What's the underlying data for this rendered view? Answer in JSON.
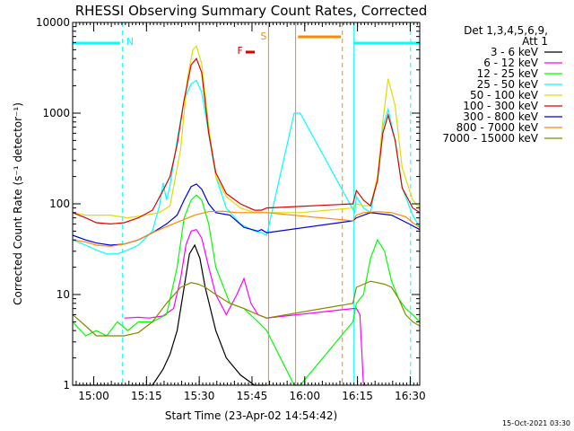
{
  "chart_data": {
    "type": "line",
    "title": "RHESSI Observing Summary Count Rates, Corrected",
    "xlabel": "Start Time (23-Apr-02 14:54:42)",
    "ylabel": "Corrected Count Rate (s⁻¹ detector⁻¹)",
    "y_scale": "log",
    "ylim": [
      1,
      10000
    ],
    "xlim_minutes": [
      -0.7,
      98
    ],
    "x_ticks": [
      {
        "label": "15:00",
        "t": 5.3
      },
      {
        "label": "15:15",
        "t": 20.3
      },
      {
        "label": "15:30",
        "t": 35.3
      },
      {
        "label": "15:45",
        "t": 50.3
      },
      {
        "label": "16:00",
        "t": 65.3
      },
      {
        "label": "16:15",
        "t": 80.3
      },
      {
        "label": "16:30",
        "t": 95.3
      }
    ],
    "y_ticks": [
      {
        "label": "1",
        "v": 1
      },
      {
        "label": "10",
        "v": 10
      },
      {
        "label": "100",
        "v": 100
      },
      {
        "label": "1000",
        "v": 1000
      },
      {
        "label": "10000",
        "v": 10000
      }
    ],
    "legend_header": [
      "Det 1,3,4,5,6,9,",
      "Att 1"
    ],
    "legend_position": "top-right",
    "series": [
      {
        "name": "3 - 6 keV",
        "color": "#000000",
        "x": [
          -0.7,
          3,
          10,
          18,
          22,
          25,
          27,
          29,
          31,
          32.5,
          34,
          35.5,
          37,
          40,
          43,
          47,
          51,
          54.5
        ],
        "y": [
          1,
          1,
          1,
          1,
          1,
          1.5,
          2.2,
          4,
          12,
          28,
          35,
          25,
          12,
          4,
          2,
          1.3,
          1,
          1
        ]
      },
      {
        "name": "6 - 12 keV",
        "color": "#ff00ff",
        "x": [
          14,
          18,
          21,
          25,
          28,
          30,
          31.5,
          33,
          34.5,
          36,
          38,
          40,
          43,
          46,
          48,
          50,
          52,
          54.5,
          79,
          80,
          81,
          82,
          83
        ],
        "y": [
          5.5,
          5.6,
          5.5,
          5.8,
          7,
          15,
          35,
          50,
          52,
          42,
          20,
          10,
          6,
          10,
          15,
          8,
          6,
          5.5,
          7,
          7,
          6,
          1,
          1
        ]
      },
      {
        "name": "12 - 25 keV",
        "color": "#00ff00",
        "x": [
          -0.7,
          3,
          6,
          9,
          12,
          15,
          18,
          22,
          26,
          29,
          31,
          33,
          34.5,
          36,
          38,
          40,
          44,
          48,
          52,
          54.5,
          62.3,
          63,
          64,
          79,
          80,
          82,
          84,
          86,
          88,
          90,
          92,
          94,
          96,
          98
        ],
        "y": [
          5,
          3.5,
          4,
          3.5,
          5,
          4,
          5,
          5,
          6,
          20,
          70,
          110,
          125,
          110,
          60,
          20,
          8,
          7,
          5,
          4,
          1,
          1,
          1,
          5,
          8,
          10,
          25,
          40,
          30,
          14,
          9,
          7,
          6,
          5
        ]
      },
      {
        "name": "25 - 50 keV",
        "color": "#00ffff",
        "x": [
          -0.7,
          3,
          6,
          9,
          12,
          15,
          18,
          22,
          24,
          25,
          26,
          27,
          29,
          31,
          33,
          34.5,
          36,
          38,
          40,
          43,
          47,
          51,
          53,
          54.5,
          62.3,
          64,
          79.5,
          80,
          82,
          84,
          86,
          87.5,
          89,
          91,
          93,
          96,
          98
        ],
        "y": [
          40,
          35,
          31,
          28,
          28,
          31,
          35,
          50,
          95,
          170,
          110,
          160,
          500,
          1400,
          2100,
          2300,
          1700,
          600,
          200,
          90,
          60,
          50,
          48,
          45,
          1000,
          1000,
          80,
          120,
          90,
          80,
          200,
          700,
          1100,
          500,
          150,
          75,
          55
        ]
      },
      {
        "name": "50 - 100 keV",
        "color": "#dddd00",
        "x": [
          -0.7,
          3,
          6,
          10,
          15,
          20,
          24,
          27,
          30,
          32,
          33.5,
          34.5,
          36,
          38,
          40,
          43,
          47,
          51,
          53,
          54.5,
          62.3,
          63,
          64,
          79,
          80,
          82,
          84,
          86,
          87.5,
          89,
          91,
          93,
          96,
          98
        ],
        "y": [
          80,
          75,
          75,
          75,
          70,
          75,
          80,
          95,
          400,
          2500,
          5000,
          5500,
          3500,
          700,
          200,
          120,
          90,
          80,
          80,
          80,
          80,
          80,
          80,
          90,
          100,
          95,
          95,
          200,
          800,
          2400,
          1200,
          250,
          110,
          90
        ]
      },
      {
        "name": "100 - 300 keV",
        "color": "#dd0000",
        "x": [
          -0.7,
          3,
          6,
          10,
          14,
          18,
          22,
          25,
          27,
          29,
          31,
          33,
          34.5,
          36,
          38,
          40,
          43,
          47,
          51,
          53,
          54.5,
          79,
          80,
          82,
          84,
          86,
          87.5,
          89,
          91,
          93,
          96,
          98
        ],
        "y": [
          80,
          70,
          62,
          60,
          62,
          70,
          85,
          140,
          200,
          450,
          1400,
          3400,
          4000,
          2800,
          600,
          220,
          130,
          100,
          85,
          85,
          90,
          100,
          140,
          110,
          95,
          180,
          600,
          950,
          500,
          150,
          90,
          80
        ]
      },
      {
        "name": "300 - 800 keV",
        "color": "#0000dd",
        "x": [
          -0.7,
          3,
          6,
          10,
          14,
          18,
          22,
          26,
          29,
          31,
          33,
          34.5,
          36,
          38,
          40,
          44,
          48,
          52,
          53,
          54.5,
          79,
          80,
          84,
          90,
          95,
          98
        ],
        "y": [
          45,
          40,
          37,
          35,
          36,
          40,
          48,
          60,
          75,
          110,
          155,
          165,
          145,
          100,
          80,
          75,
          55,
          50,
          52,
          48,
          65,
          70,
          80,
          75,
          60,
          52
        ]
      },
      {
        "name": "800 - 7000 keV",
        "color": "#ff8800",
        "x": [
          -0.7,
          3,
          6,
          10,
          14,
          18,
          22,
          26,
          30,
          34,
          38,
          42,
          46,
          50,
          54.5,
          79,
          80,
          82,
          86,
          90,
          94,
          96,
          98
        ],
        "y": [
          40,
          38,
          35,
          34,
          36,
          40,
          48,
          56,
          65,
          75,
          82,
          83,
          80,
          80,
          80,
          65,
          75,
          80,
          82,
          80,
          72,
          62,
          55
        ]
      },
      {
        "name": "7000 - 15000 keV",
        "color": "#888800",
        "x": [
          -0.7,
          3,
          6,
          10,
          14,
          18,
          22,
          26,
          30,
          33,
          35,
          37,
          40,
          44,
          48,
          52,
          54.5,
          79,
          80,
          84,
          88,
          90,
          92,
          94,
          96,
          98
        ],
        "y": [
          6,
          4.5,
          3.5,
          3.5,
          3.5,
          3.8,
          5,
          8,
          12,
          13.5,
          13,
          12,
          10,
          8,
          7,
          6,
          5.5,
          8,
          12,
          14,
          13,
          12,
          9,
          6,
          5,
          4.5
        ]
      }
    ],
    "annotations": [
      {
        "label": "N",
        "color": "#00ffff"
      },
      {
        "label": "S",
        "color": "#ff8800"
      },
      {
        "label": "F",
        "color": "#dd0000"
      }
    ],
    "timestamp": "15-Oct-2021 03:30"
  }
}
